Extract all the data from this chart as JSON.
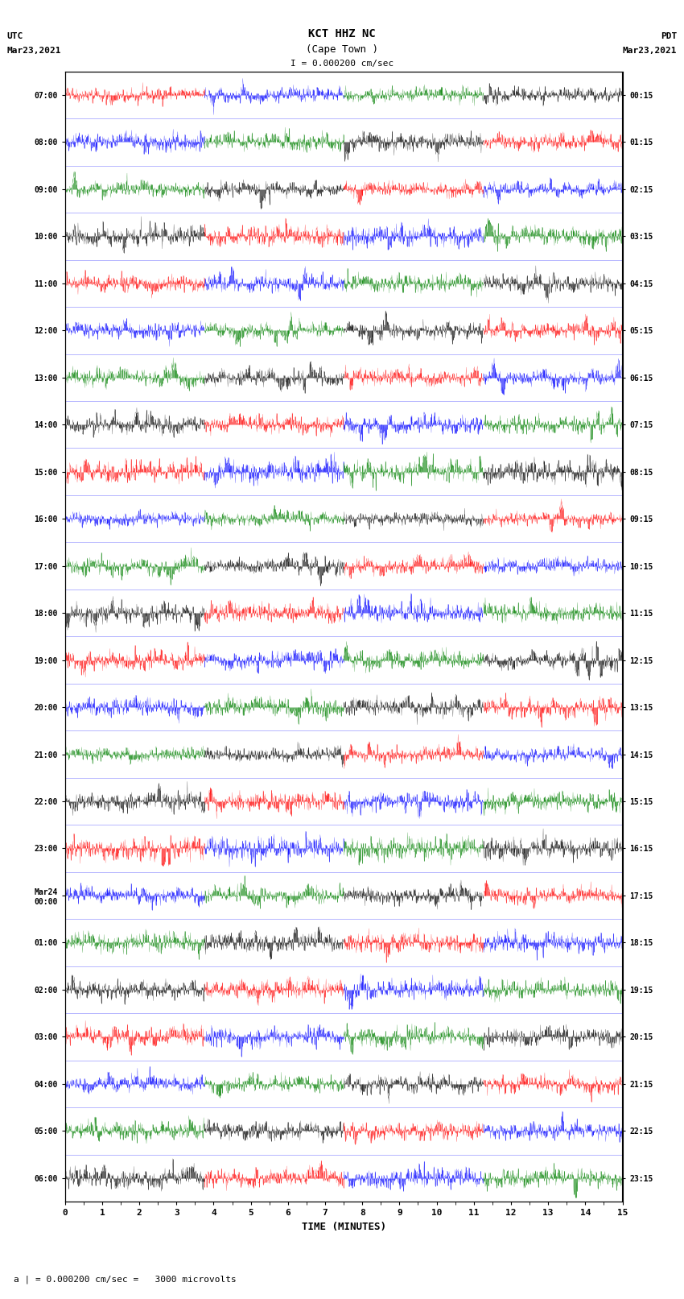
{
  "title_line1": "KCT HHZ NC",
  "title_line2": "(Cape Town )",
  "scale_text": "I = 0.000200 cm/sec",
  "left_label_line1": "UTC",
  "left_label_line2": "Mar23,2021",
  "right_label_line1": "PDT",
  "right_label_line2": "Mar23,2021",
  "bottom_label": "a | = 0.000200 cm/sec =   3000 microvolts",
  "xlabel": "TIME (MINUTES)",
  "left_times": [
    "07:00",
    "08:00",
    "09:00",
    "10:00",
    "11:00",
    "12:00",
    "13:00",
    "14:00",
    "15:00",
    "16:00",
    "17:00",
    "18:00",
    "19:00",
    "20:00",
    "21:00",
    "22:00",
    "23:00",
    "Mar24\n00:00",
    "01:00",
    "02:00",
    "03:00",
    "04:00",
    "05:00",
    "06:00"
  ],
  "right_times": [
    "00:15",
    "01:15",
    "02:15",
    "03:15",
    "04:15",
    "05:15",
    "06:15",
    "07:15",
    "08:15",
    "09:15",
    "10:15",
    "11:15",
    "12:15",
    "13:15",
    "14:15",
    "15:15",
    "16:15",
    "17:15",
    "18:15",
    "19:15",
    "20:15",
    "21:15",
    "22:15",
    "23:15"
  ],
  "num_traces": 24,
  "minutes_per_trace": 15,
  "colors": [
    "red",
    "blue",
    "green",
    "black"
  ],
  "bg_color": "white",
  "figsize": [
    8.5,
    16.13
  ],
  "dpi": 100
}
